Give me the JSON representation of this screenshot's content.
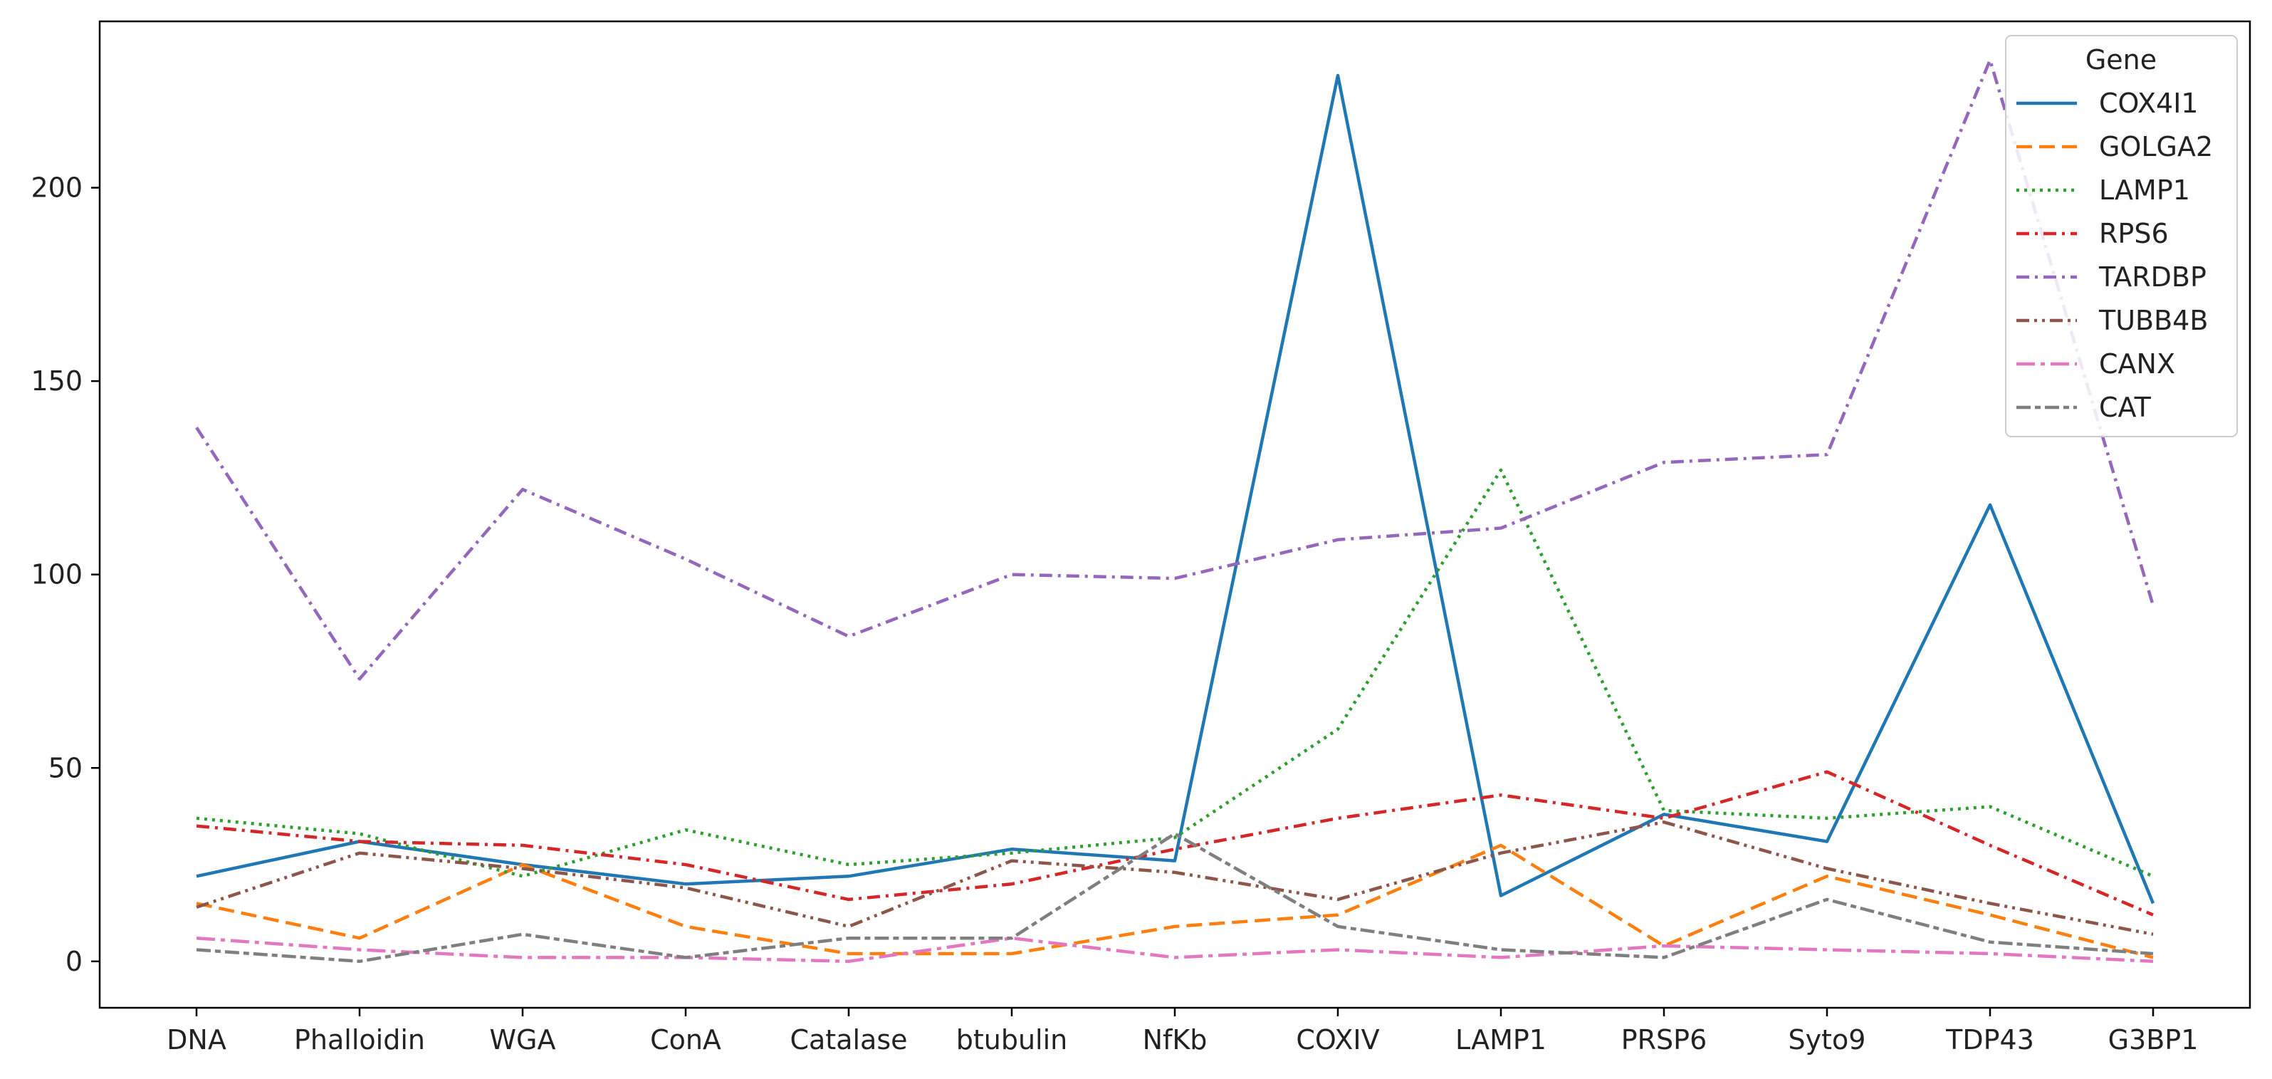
{
  "chart_data": {
    "type": "line",
    "categories": [
      "DNA",
      "Phalloidin",
      "WGA",
      "ConA",
      "Catalase",
      "btubulin",
      "NfKb",
      "COXIV",
      "LAMP1",
      "PRSP6",
      "Syto9",
      "TDP43",
      "G3BP1"
    ],
    "title": "",
    "xlabel": "",
    "ylabel": "",
    "ylim": [
      -12,
      243
    ],
    "yticks": [
      0,
      50,
      100,
      150,
      200
    ],
    "grid": false,
    "legend": {
      "title": "Gene",
      "position": "top-right"
    },
    "series": [
      {
        "name": "COX4I1",
        "color": "#1f77b4",
        "dash": "solid",
        "values": [
          22,
          31,
          25,
          20,
          22,
          29,
          26,
          229,
          17,
          38,
          31,
          118,
          15
        ]
      },
      {
        "name": "GOLGA2",
        "color": "#ff7f0e",
        "dash": "dashed",
        "values": [
          15,
          6,
          25,
          9,
          2,
          2,
          9,
          12,
          30,
          4,
          22,
          12,
          1
        ]
      },
      {
        "name": "LAMP1",
        "color": "#2ca02c",
        "dash": "dotted",
        "values": [
          37,
          33,
          22,
          34,
          25,
          28,
          32,
          60,
          127,
          39,
          37,
          40,
          22
        ]
      },
      {
        "name": "RPS6",
        "color": "#d62728",
        "dash": "dashdot",
        "values": [
          35,
          31,
          30,
          25,
          16,
          20,
          29,
          37,
          43,
          37,
          49,
          30,
          12
        ]
      },
      {
        "name": "TARDBP",
        "color": "#9467bd",
        "dash": "dashdot",
        "values": [
          138,
          73,
          122,
          104,
          84,
          100,
          99,
          109,
          112,
          129,
          131,
          233,
          92
        ]
      },
      {
        "name": "TUBB4B",
        "color": "#8c564b",
        "dash": "dashdotdot",
        "values": [
          14,
          28,
          24,
          19,
          9,
          26,
          23,
          16,
          28,
          36,
          24,
          15,
          7
        ]
      },
      {
        "name": "CANX",
        "color": "#e377c2",
        "dash": "dashdot-long",
        "values": [
          6,
          3,
          1,
          1,
          0,
          6,
          1,
          3,
          1,
          4,
          3,
          2,
          0
        ]
      },
      {
        "name": "CAT",
        "color": "#7f7f7f",
        "dash": "dashdot-mid",
        "values": [
          3,
          0,
          7,
          1,
          6,
          6,
          33,
          9,
          3,
          1,
          16,
          5,
          2
        ]
      }
    ]
  }
}
